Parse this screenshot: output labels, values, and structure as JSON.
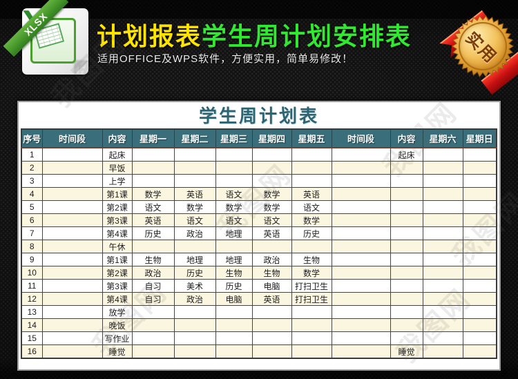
{
  "header": {
    "file_type_ribbon": "XLSX",
    "file_logo_letter": "X",
    "title_part1": "计划报表",
    "title_part2": "学生周计划安排表",
    "subtitle": "适用OFFICE及WPS软件，方便实用，简单易修改！",
    "corner_badge_label": "实用"
  },
  "watermark": {
    "text": "我图网"
  },
  "table": {
    "title": "学生周计划表",
    "columns": [
      "序号",
      "时间段",
      "内容",
      "星期一",
      "星期二",
      "星期三",
      "星期四",
      "星期五",
      "时间段",
      "内容",
      "星期六",
      "星期日"
    ],
    "rows": [
      [
        "1",
        "",
        "起床",
        "",
        "",
        "",
        "",
        "",
        "",
        "起床",
        "",
        ""
      ],
      [
        "2",
        "",
        "早饭",
        "",
        "",
        "",
        "",
        "",
        "",
        "",
        "",
        ""
      ],
      [
        "3",
        "",
        "上学",
        "",
        "",
        "",
        "",
        "",
        "",
        "",
        "",
        ""
      ],
      [
        "4",
        "",
        "第1课",
        "数学",
        "英语",
        "语文",
        "数学",
        "英语",
        "",
        "",
        "",
        ""
      ],
      [
        "5",
        "",
        "第2课",
        "语文",
        "数学",
        "数学",
        "数学",
        "语文",
        "",
        "",
        "",
        ""
      ],
      [
        "6",
        "",
        "第3课",
        "英语",
        "语文",
        "语文",
        "语文",
        "数学",
        "",
        "",
        "",
        ""
      ],
      [
        "7",
        "",
        "第4课",
        "历史",
        "政治",
        "地理",
        "英语",
        "历史",
        "",
        "",
        "",
        ""
      ],
      [
        "8",
        "",
        "午休",
        "",
        "",
        "",
        "",
        "",
        "",
        "",
        "",
        ""
      ],
      [
        "9",
        "",
        "第1课",
        "生物",
        "地理",
        "地理",
        "政治",
        "生物",
        "",
        "",
        "",
        ""
      ],
      [
        "10",
        "",
        "第2课",
        "政治",
        "历史",
        "生物",
        "生物",
        "数学",
        "",
        "",
        "",
        ""
      ],
      [
        "11",
        "",
        "第3课",
        "自习",
        "美术",
        "历史",
        "电脑",
        "打扫卫生",
        "",
        "",
        "",
        ""
      ],
      [
        "12",
        "",
        "第4课",
        "自习",
        "政治",
        "电脑",
        "英语",
        "打扫卫生",
        "",
        "",
        "",
        ""
      ],
      [
        "13",
        "",
        "放学",
        "",
        "",
        "",
        "",
        "",
        "",
        "",
        "",
        ""
      ],
      [
        "14",
        "",
        "晚饭",
        "",
        "",
        "",
        "",
        "",
        "",
        "",
        "",
        ""
      ],
      [
        "15",
        "",
        "写作业",
        "",
        "",
        "",
        "",
        "",
        "",
        "",
        "",
        ""
      ],
      [
        "16",
        "",
        "睡觉",
        "",
        "",
        "",
        "",
        "",
        "",
        "睡觉",
        "",
        ""
      ]
    ]
  },
  "colors": {
    "title_yellow": "#ffe400",
    "title_green": "#30e930",
    "table_header_teal": "#396e7a",
    "row_stripe_cream": "#fbf6df",
    "panel_title_teal": "#2d6473",
    "badge_gold": "#f3c35e",
    "ribbon_red": "#c41010",
    "xlsx_green": "#2f7d1d"
  }
}
